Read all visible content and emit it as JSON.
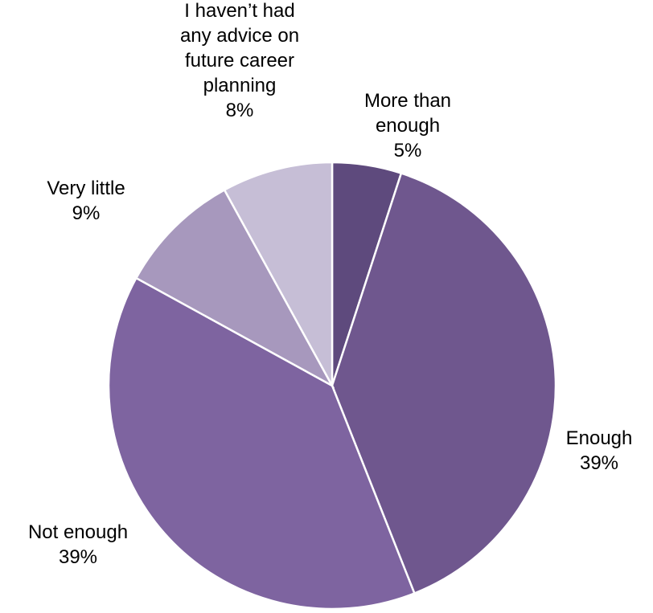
{
  "chart_data": {
    "type": "pie",
    "title": "",
    "start_angle_deg": 0,
    "direction": "clockwise",
    "slices": [
      {
        "label": "More than enough",
        "value": 5,
        "value_label": "5%",
        "color": "#5e4a7d"
      },
      {
        "label": "Enough",
        "value": 39,
        "value_label": "39%",
        "color": "#6f578e"
      },
      {
        "label": "Not enough",
        "value": 39,
        "value_label": "39%",
        "color": "#7e64a0"
      },
      {
        "label": "Very little",
        "value": 9,
        "value_label": "9%",
        "color": "#a798bd"
      },
      {
        "label": "I haven’t had any advice on future career planning",
        "value": 8,
        "value_label": "8%",
        "color": "#c6bed6"
      }
    ]
  }
}
